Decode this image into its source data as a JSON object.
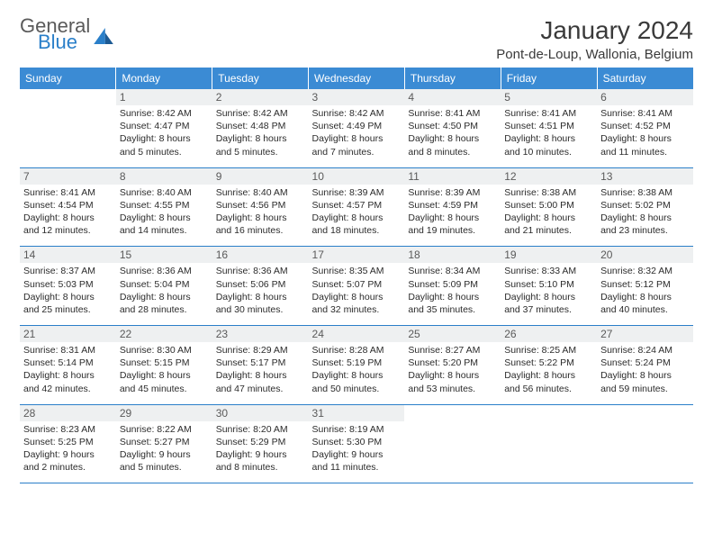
{
  "brand": {
    "word1": "General",
    "word2": "Blue"
  },
  "title": {
    "month": "January 2024",
    "location": "Pont-de-Loup, Wallonia, Belgium"
  },
  "colors": {
    "header_bg": "#3b8bd4",
    "header_text": "#ffffff",
    "rule": "#2a7fc9",
    "daynum_bg": "#eef0f1",
    "text": "#2b2b2b",
    "logo_gray": "#5a5a5a",
    "logo_blue": "#2a7fc9"
  },
  "weekdays": [
    "Sunday",
    "Monday",
    "Tuesday",
    "Wednesday",
    "Thursday",
    "Friday",
    "Saturday"
  ],
  "weeks": [
    [
      null,
      {
        "n": "1",
        "sr": "8:42 AM",
        "ss": "4:47 PM",
        "dl": "8 hours and 5 minutes."
      },
      {
        "n": "2",
        "sr": "8:42 AM",
        "ss": "4:48 PM",
        "dl": "8 hours and 5 minutes."
      },
      {
        "n": "3",
        "sr": "8:42 AM",
        "ss": "4:49 PM",
        "dl": "8 hours and 7 minutes."
      },
      {
        "n": "4",
        "sr": "8:41 AM",
        "ss": "4:50 PM",
        "dl": "8 hours and 8 minutes."
      },
      {
        "n": "5",
        "sr": "8:41 AM",
        "ss": "4:51 PM",
        "dl": "8 hours and 10 minutes."
      },
      {
        "n": "6",
        "sr": "8:41 AM",
        "ss": "4:52 PM",
        "dl": "8 hours and 11 minutes."
      }
    ],
    [
      {
        "n": "7",
        "sr": "8:41 AM",
        "ss": "4:54 PM",
        "dl": "8 hours and 12 minutes."
      },
      {
        "n": "8",
        "sr": "8:40 AM",
        "ss": "4:55 PM",
        "dl": "8 hours and 14 minutes."
      },
      {
        "n": "9",
        "sr": "8:40 AM",
        "ss": "4:56 PM",
        "dl": "8 hours and 16 minutes."
      },
      {
        "n": "10",
        "sr": "8:39 AM",
        "ss": "4:57 PM",
        "dl": "8 hours and 18 minutes."
      },
      {
        "n": "11",
        "sr": "8:39 AM",
        "ss": "4:59 PM",
        "dl": "8 hours and 19 minutes."
      },
      {
        "n": "12",
        "sr": "8:38 AM",
        "ss": "5:00 PM",
        "dl": "8 hours and 21 minutes."
      },
      {
        "n": "13",
        "sr": "8:38 AM",
        "ss": "5:02 PM",
        "dl": "8 hours and 23 minutes."
      }
    ],
    [
      {
        "n": "14",
        "sr": "8:37 AM",
        "ss": "5:03 PM",
        "dl": "8 hours and 25 minutes."
      },
      {
        "n": "15",
        "sr": "8:36 AM",
        "ss": "5:04 PM",
        "dl": "8 hours and 28 minutes."
      },
      {
        "n": "16",
        "sr": "8:36 AM",
        "ss": "5:06 PM",
        "dl": "8 hours and 30 minutes."
      },
      {
        "n": "17",
        "sr": "8:35 AM",
        "ss": "5:07 PM",
        "dl": "8 hours and 32 minutes."
      },
      {
        "n": "18",
        "sr": "8:34 AM",
        "ss": "5:09 PM",
        "dl": "8 hours and 35 minutes."
      },
      {
        "n": "19",
        "sr": "8:33 AM",
        "ss": "5:10 PM",
        "dl": "8 hours and 37 minutes."
      },
      {
        "n": "20",
        "sr": "8:32 AM",
        "ss": "5:12 PM",
        "dl": "8 hours and 40 minutes."
      }
    ],
    [
      {
        "n": "21",
        "sr": "8:31 AM",
        "ss": "5:14 PM",
        "dl": "8 hours and 42 minutes."
      },
      {
        "n": "22",
        "sr": "8:30 AM",
        "ss": "5:15 PM",
        "dl": "8 hours and 45 minutes."
      },
      {
        "n": "23",
        "sr": "8:29 AM",
        "ss": "5:17 PM",
        "dl": "8 hours and 47 minutes."
      },
      {
        "n": "24",
        "sr": "8:28 AM",
        "ss": "5:19 PM",
        "dl": "8 hours and 50 minutes."
      },
      {
        "n": "25",
        "sr": "8:27 AM",
        "ss": "5:20 PM",
        "dl": "8 hours and 53 minutes."
      },
      {
        "n": "26",
        "sr": "8:25 AM",
        "ss": "5:22 PM",
        "dl": "8 hours and 56 minutes."
      },
      {
        "n": "27",
        "sr": "8:24 AM",
        "ss": "5:24 PM",
        "dl": "8 hours and 59 minutes."
      }
    ],
    [
      {
        "n": "28",
        "sr": "8:23 AM",
        "ss": "5:25 PM",
        "dl": "9 hours and 2 minutes."
      },
      {
        "n": "29",
        "sr": "8:22 AM",
        "ss": "5:27 PM",
        "dl": "9 hours and 5 minutes."
      },
      {
        "n": "30",
        "sr": "8:20 AM",
        "ss": "5:29 PM",
        "dl": "9 hours and 8 minutes."
      },
      {
        "n": "31",
        "sr": "8:19 AM",
        "ss": "5:30 PM",
        "dl": "9 hours and 11 minutes."
      },
      null,
      null,
      null
    ]
  ],
  "labels": {
    "sunrise": "Sunrise:",
    "sunset": "Sunset:",
    "daylight": "Daylight:"
  }
}
